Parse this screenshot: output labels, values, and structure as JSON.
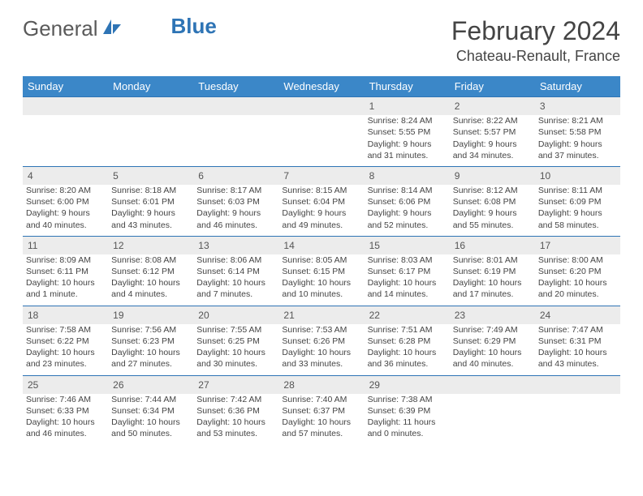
{
  "brand": {
    "part1": "General",
    "part2": "Blue"
  },
  "title": "February 2024",
  "location": "Chateau-Renault, France",
  "colors": {
    "header_bg": "#3b87c8",
    "header_text": "#ffffff",
    "rule": "#2e74b5",
    "daynum_bg": "#ececec",
    "body_text": "#444444",
    "brand_gray": "#5a5a5a",
    "brand_blue": "#2e74b5"
  },
  "weekdays": [
    "Sunday",
    "Monday",
    "Tuesday",
    "Wednesday",
    "Thursday",
    "Friday",
    "Saturday"
  ],
  "weeks": [
    [
      null,
      null,
      null,
      null,
      {
        "n": "1",
        "sr": "Sunrise: 8:24 AM",
        "ss": "Sunset: 5:55 PM",
        "d1": "Daylight: 9 hours",
        "d2": "and 31 minutes."
      },
      {
        "n": "2",
        "sr": "Sunrise: 8:22 AM",
        "ss": "Sunset: 5:57 PM",
        "d1": "Daylight: 9 hours",
        "d2": "and 34 minutes."
      },
      {
        "n": "3",
        "sr": "Sunrise: 8:21 AM",
        "ss": "Sunset: 5:58 PM",
        "d1": "Daylight: 9 hours",
        "d2": "and 37 minutes."
      }
    ],
    [
      {
        "n": "4",
        "sr": "Sunrise: 8:20 AM",
        "ss": "Sunset: 6:00 PM",
        "d1": "Daylight: 9 hours",
        "d2": "and 40 minutes."
      },
      {
        "n": "5",
        "sr": "Sunrise: 8:18 AM",
        "ss": "Sunset: 6:01 PM",
        "d1": "Daylight: 9 hours",
        "d2": "and 43 minutes."
      },
      {
        "n": "6",
        "sr": "Sunrise: 8:17 AM",
        "ss": "Sunset: 6:03 PM",
        "d1": "Daylight: 9 hours",
        "d2": "and 46 minutes."
      },
      {
        "n": "7",
        "sr": "Sunrise: 8:15 AM",
        "ss": "Sunset: 6:04 PM",
        "d1": "Daylight: 9 hours",
        "d2": "and 49 minutes."
      },
      {
        "n": "8",
        "sr": "Sunrise: 8:14 AM",
        "ss": "Sunset: 6:06 PM",
        "d1": "Daylight: 9 hours",
        "d2": "and 52 minutes."
      },
      {
        "n": "9",
        "sr": "Sunrise: 8:12 AM",
        "ss": "Sunset: 6:08 PM",
        "d1": "Daylight: 9 hours",
        "d2": "and 55 minutes."
      },
      {
        "n": "10",
        "sr": "Sunrise: 8:11 AM",
        "ss": "Sunset: 6:09 PM",
        "d1": "Daylight: 9 hours",
        "d2": "and 58 minutes."
      }
    ],
    [
      {
        "n": "11",
        "sr": "Sunrise: 8:09 AM",
        "ss": "Sunset: 6:11 PM",
        "d1": "Daylight: 10 hours",
        "d2": "and 1 minute."
      },
      {
        "n": "12",
        "sr": "Sunrise: 8:08 AM",
        "ss": "Sunset: 6:12 PM",
        "d1": "Daylight: 10 hours",
        "d2": "and 4 minutes."
      },
      {
        "n": "13",
        "sr": "Sunrise: 8:06 AM",
        "ss": "Sunset: 6:14 PM",
        "d1": "Daylight: 10 hours",
        "d2": "and 7 minutes."
      },
      {
        "n": "14",
        "sr": "Sunrise: 8:05 AM",
        "ss": "Sunset: 6:15 PM",
        "d1": "Daylight: 10 hours",
        "d2": "and 10 minutes."
      },
      {
        "n": "15",
        "sr": "Sunrise: 8:03 AM",
        "ss": "Sunset: 6:17 PM",
        "d1": "Daylight: 10 hours",
        "d2": "and 14 minutes."
      },
      {
        "n": "16",
        "sr": "Sunrise: 8:01 AM",
        "ss": "Sunset: 6:19 PM",
        "d1": "Daylight: 10 hours",
        "d2": "and 17 minutes."
      },
      {
        "n": "17",
        "sr": "Sunrise: 8:00 AM",
        "ss": "Sunset: 6:20 PM",
        "d1": "Daylight: 10 hours",
        "d2": "and 20 minutes."
      }
    ],
    [
      {
        "n": "18",
        "sr": "Sunrise: 7:58 AM",
        "ss": "Sunset: 6:22 PM",
        "d1": "Daylight: 10 hours",
        "d2": "and 23 minutes."
      },
      {
        "n": "19",
        "sr": "Sunrise: 7:56 AM",
        "ss": "Sunset: 6:23 PM",
        "d1": "Daylight: 10 hours",
        "d2": "and 27 minutes."
      },
      {
        "n": "20",
        "sr": "Sunrise: 7:55 AM",
        "ss": "Sunset: 6:25 PM",
        "d1": "Daylight: 10 hours",
        "d2": "and 30 minutes."
      },
      {
        "n": "21",
        "sr": "Sunrise: 7:53 AM",
        "ss": "Sunset: 6:26 PM",
        "d1": "Daylight: 10 hours",
        "d2": "and 33 minutes."
      },
      {
        "n": "22",
        "sr": "Sunrise: 7:51 AM",
        "ss": "Sunset: 6:28 PM",
        "d1": "Daylight: 10 hours",
        "d2": "and 36 minutes."
      },
      {
        "n": "23",
        "sr": "Sunrise: 7:49 AM",
        "ss": "Sunset: 6:29 PM",
        "d1": "Daylight: 10 hours",
        "d2": "and 40 minutes."
      },
      {
        "n": "24",
        "sr": "Sunrise: 7:47 AM",
        "ss": "Sunset: 6:31 PM",
        "d1": "Daylight: 10 hours",
        "d2": "and 43 minutes."
      }
    ],
    [
      {
        "n": "25",
        "sr": "Sunrise: 7:46 AM",
        "ss": "Sunset: 6:33 PM",
        "d1": "Daylight: 10 hours",
        "d2": "and 46 minutes."
      },
      {
        "n": "26",
        "sr": "Sunrise: 7:44 AM",
        "ss": "Sunset: 6:34 PM",
        "d1": "Daylight: 10 hours",
        "d2": "and 50 minutes."
      },
      {
        "n": "27",
        "sr": "Sunrise: 7:42 AM",
        "ss": "Sunset: 6:36 PM",
        "d1": "Daylight: 10 hours",
        "d2": "and 53 minutes."
      },
      {
        "n": "28",
        "sr": "Sunrise: 7:40 AM",
        "ss": "Sunset: 6:37 PM",
        "d1": "Daylight: 10 hours",
        "d2": "and 57 minutes."
      },
      {
        "n": "29",
        "sr": "Sunrise: 7:38 AM",
        "ss": "Sunset: 6:39 PM",
        "d1": "Daylight: 11 hours",
        "d2": "and 0 minutes."
      },
      null,
      null
    ]
  ]
}
